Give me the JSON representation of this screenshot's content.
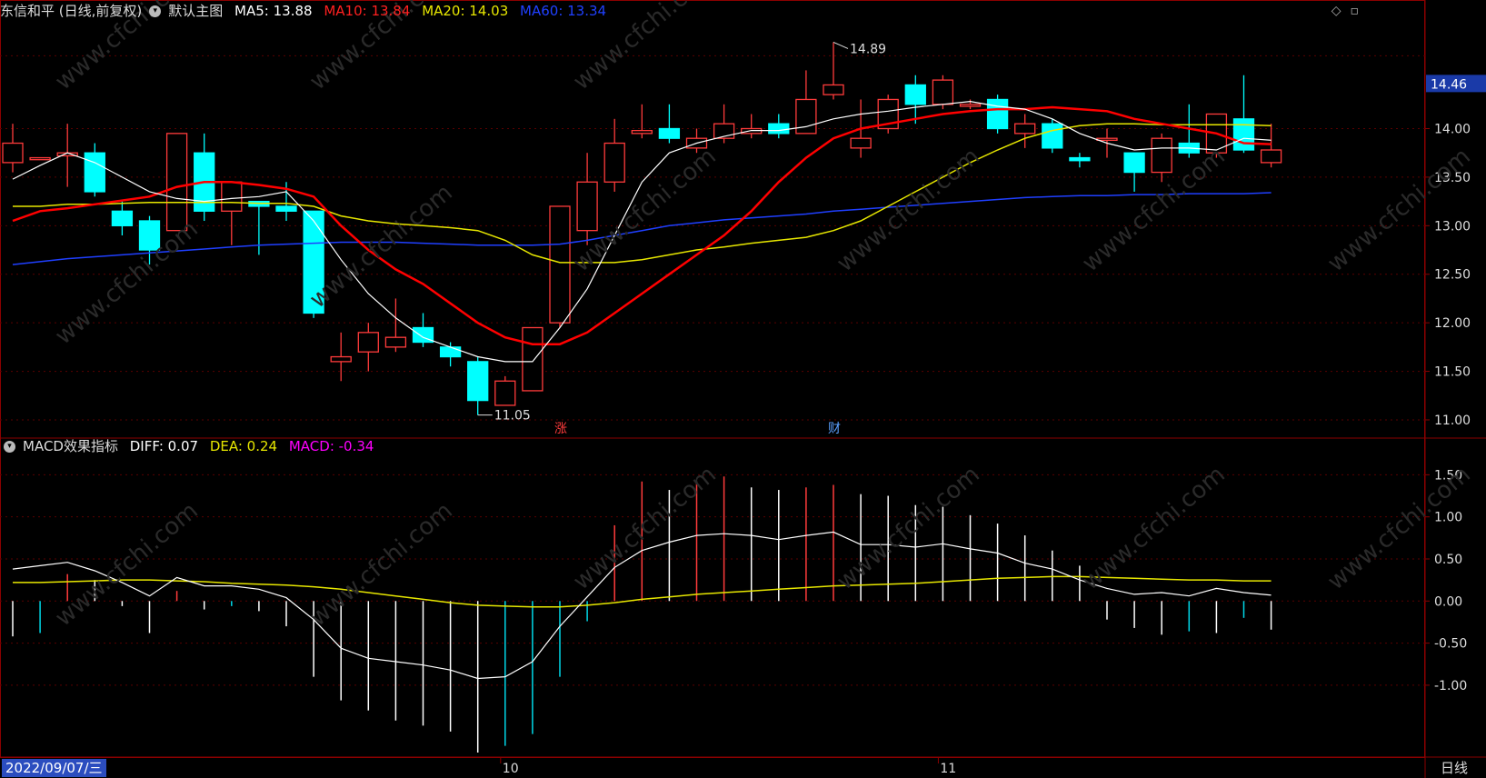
{
  "header": {
    "stock": "东信和平 (日线,前复权)",
    "main_chart_label": "默认主图",
    "ma5": "MA5: 13.88",
    "ma10": "MA10: 13.84",
    "ma20": "MA20: 14.03",
    "ma60": "MA60: 13.34"
  },
  "macd_header": {
    "title": "MACD效果指标",
    "diff": "DIFF: 0.07",
    "dea": "DEA: 0.24",
    "macd": "MACD: -0.34"
  },
  "footer": {
    "date": "2022/09/07/三",
    "period": "日线"
  },
  "colors": {
    "up": "#ff3b3b",
    "down": "#00ffff",
    "ma5": "#ffffff",
    "ma10": "#ff0000",
    "ma20": "#e6e600",
    "ma60": "#1f3fff",
    "macd_label": "#ff00ff"
  },
  "chart_data": [
    {
      "type": "candlestick",
      "ylim": [
        10.85,
        15.1
      ],
      "y_ticks": [
        "14.00",
        "13.50",
        "13.00",
        "12.50",
        "12.00",
        "11.50",
        "11.00"
      ],
      "current_price_label": "14.46",
      "annotations": {
        "high": "14.89",
        "low": "11.05",
        "markers": [
          "涨",
          "财"
        ]
      },
      "x_ticks": [
        "10",
        "11"
      ],
      "candles": [
        [
          13.65,
          13.85,
          14.05,
          13.55
        ],
        [
          13.68,
          13.7,
          13.7,
          13.68
        ],
        [
          13.72,
          13.75,
          14.05,
          13.4
        ],
        [
          13.75,
          13.35,
          13.85,
          13.3
        ],
        [
          13.15,
          13.0,
          13.25,
          12.9
        ],
        [
          13.05,
          12.75,
          13.1,
          12.6
        ],
        [
          12.95,
          13.95,
          13.95,
          12.95
        ],
        [
          13.75,
          13.15,
          13.95,
          13.05
        ],
        [
          13.15,
          13.45,
          13.45,
          12.8
        ],
        [
          13.25,
          13.2,
          13.25,
          12.7
        ],
        [
          13.2,
          13.15,
          13.45,
          13.05
        ],
        [
          13.15,
          12.1,
          13.15,
          12.05
        ],
        [
          11.6,
          11.65,
          11.9,
          11.4
        ],
        [
          11.7,
          11.9,
          12.0,
          11.5
        ],
        [
          11.75,
          11.85,
          12.25,
          11.7
        ],
        [
          11.95,
          11.8,
          12.1,
          11.75
        ],
        [
          11.75,
          11.65,
          11.8,
          11.55
        ],
        [
          11.6,
          11.2,
          11.65,
          11.05
        ],
        [
          11.15,
          11.4,
          11.45,
          11.15
        ],
        [
          11.3,
          11.95,
          11.95,
          11.3
        ],
        [
          12.0,
          13.2,
          13.2,
          11.95
        ],
        [
          12.95,
          13.45,
          13.75,
          12.8
        ],
        [
          13.45,
          13.85,
          14.1,
          13.35
        ],
        [
          13.95,
          13.98,
          14.25,
          13.9
        ],
        [
          14.0,
          13.9,
          14.25,
          13.85
        ],
        [
          13.8,
          13.9,
          14.0,
          13.75
        ],
        [
          13.9,
          14.05,
          14.25,
          13.85
        ],
        [
          13.95,
          14.0,
          14.15,
          13.9
        ],
        [
          14.05,
          13.95,
          14.15,
          13.9
        ],
        [
          13.95,
          14.3,
          14.6,
          13.95
        ],
        [
          14.35,
          14.45,
          14.89,
          14.3
        ],
        [
          13.8,
          13.9,
          14.3,
          13.7
        ],
        [
          14.0,
          14.3,
          14.35,
          13.95
        ],
        [
          14.45,
          14.25,
          14.55,
          14.05
        ],
        [
          14.25,
          14.5,
          14.55,
          14.2
        ],
        [
          14.23,
          14.25,
          14.3,
          14.2
        ],
        [
          14.3,
          14.0,
          14.35,
          13.95
        ],
        [
          13.95,
          14.05,
          14.15,
          13.8
        ],
        [
          14.05,
          13.8,
          14.1,
          13.75
        ],
        [
          13.7,
          13.67,
          13.75,
          13.6
        ],
        [
          13.88,
          13.9,
          14.0,
          13.7
        ],
        [
          13.75,
          13.55,
          13.75,
          13.35
        ],
        [
          13.55,
          13.9,
          13.95,
          13.45
        ],
        [
          13.85,
          13.75,
          14.25,
          13.7
        ],
        [
          13.75,
          14.15,
          14.15,
          13.7
        ],
        [
          14.1,
          13.78,
          14.55,
          13.75
        ],
        [
          13.65,
          13.78,
          14.05,
          13.6
        ]
      ],
      "ma5": [
        13.48,
        13.62,
        13.75,
        13.65,
        13.5,
        13.35,
        13.28,
        13.25,
        13.28,
        13.3,
        13.35,
        13.05,
        12.65,
        12.3,
        12.05,
        11.85,
        11.75,
        11.65,
        11.6,
        11.6,
        11.95,
        12.35,
        12.9,
        13.45,
        13.75,
        13.85,
        13.92,
        13.98,
        13.98,
        14.02,
        14.1,
        14.15,
        14.18,
        14.22,
        14.25,
        14.28,
        14.23,
        14.2,
        14.1,
        13.95,
        13.85,
        13.78,
        13.8,
        13.8,
        13.78,
        13.9,
        13.88
      ],
      "ma10": [
        13.05,
        13.15,
        13.18,
        13.22,
        13.26,
        13.3,
        13.4,
        13.45,
        13.45,
        13.42,
        13.38,
        13.3,
        13.0,
        12.75,
        12.55,
        12.4,
        12.2,
        12.0,
        11.85,
        11.78,
        11.78,
        11.9,
        12.1,
        12.3,
        12.5,
        12.7,
        12.9,
        13.15,
        13.45,
        13.7,
        13.9,
        14.0,
        14.05,
        14.1,
        14.15,
        14.18,
        14.2,
        14.2,
        14.22,
        14.2,
        14.18,
        14.1,
        14.05,
        14.0,
        13.95,
        13.85,
        13.84
      ],
      "ma20": [
        13.2,
        13.2,
        13.22,
        13.22,
        13.23,
        13.24,
        13.24,
        13.24,
        13.24,
        13.23,
        13.23,
        13.2,
        13.1,
        13.05,
        13.02,
        13.0,
        12.98,
        12.95,
        12.85,
        12.7,
        12.62,
        12.62,
        12.62,
        12.65,
        12.7,
        12.75,
        12.78,
        12.82,
        12.85,
        12.88,
        12.95,
        13.05,
        13.2,
        13.35,
        13.5,
        13.65,
        13.78,
        13.9,
        13.98,
        14.03,
        14.05,
        14.05,
        14.04,
        14.04,
        14.04,
        14.04,
        14.03
      ],
      "ma60": [
        12.6,
        12.63,
        12.66,
        12.68,
        12.7,
        12.72,
        12.74,
        12.76,
        12.78,
        12.8,
        12.81,
        12.82,
        12.83,
        12.83,
        12.83,
        12.82,
        12.81,
        12.8,
        12.8,
        12.8,
        12.81,
        12.85,
        12.9,
        12.95,
        13.0,
        13.03,
        13.06,
        13.08,
        13.1,
        13.12,
        13.15,
        13.17,
        13.19,
        13.21,
        13.23,
        13.25,
        13.27,
        13.29,
        13.3,
        13.31,
        13.31,
        13.32,
        13.32,
        13.33,
        13.33,
        13.33,
        13.34
      ]
    },
    {
      "type": "macd",
      "ylim": [
        -1.8,
        1.72
      ],
      "y_ticks": [
        "1.50",
        "1.00",
        "0.50",
        "0.00",
        "-0.50",
        "-1.00"
      ],
      "diff": [
        0.38,
        0.42,
        0.46,
        0.36,
        0.22,
        0.06,
        0.28,
        0.18,
        0.18,
        0.14,
        0.04,
        -0.22,
        -0.56,
        -0.68,
        -0.72,
        -0.76,
        -0.82,
        -0.92,
        -0.9,
        -0.72,
        -0.3,
        0.05,
        0.4,
        0.6,
        0.7,
        0.78,
        0.8,
        0.78,
        0.73,
        0.78,
        0.82,
        0.67,
        0.67,
        0.64,
        0.68,
        0.62,
        0.57,
        0.45,
        0.38,
        0.25,
        0.15,
        0.08,
        0.1,
        0.06,
        0.15,
        0.1,
        0.07
      ],
      "dea": [
        0.22,
        0.22,
        0.23,
        0.24,
        0.25,
        0.25,
        0.24,
        0.23,
        0.21,
        0.2,
        0.19,
        0.17,
        0.14,
        0.1,
        0.06,
        0.02,
        -0.02,
        -0.05,
        -0.06,
        -0.07,
        -0.07,
        -0.05,
        -0.02,
        0.02,
        0.05,
        0.08,
        0.1,
        0.12,
        0.14,
        0.16,
        0.18,
        0.19,
        0.2,
        0.21,
        0.23,
        0.25,
        0.27,
        0.28,
        0.29,
        0.29,
        0.28,
        0.27,
        0.26,
        0.25,
        0.25,
        0.24,
        0.24
      ],
      "macd": [
        -0.42,
        -0.38,
        0.32,
        0.25,
        -0.06,
        -0.38,
        0.12,
        -0.1,
        -0.06,
        -0.12,
        -0.3,
        -0.9,
        -1.18,
        -1.3,
        -1.42,
        -1.48,
        -1.55,
        -1.8,
        -1.72,
        -1.58,
        -0.9,
        -0.24,
        0.9,
        1.42,
        1.32,
        1.42,
        1.48,
        1.35,
        1.32,
        1.35,
        1.38,
        1.27,
        1.25,
        1.14,
        1.12,
        1.02,
        0.92,
        0.78,
        0.6,
        0.42,
        -0.22,
        -0.32,
        -0.4,
        -0.36,
        -0.38,
        -0.2,
        -0.34
      ]
    }
  ]
}
